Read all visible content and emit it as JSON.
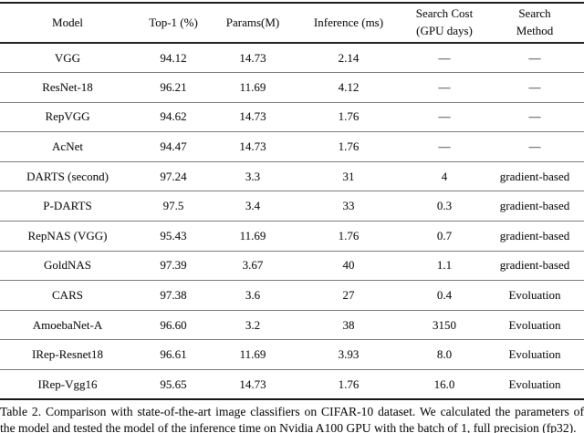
{
  "table": {
    "headers": {
      "model": {
        "line1": "Model"
      },
      "top1": {
        "line1": "Top-1 (%)"
      },
      "params": {
        "line1": "Params(M)"
      },
      "inference": {
        "line1": "Inference (ms)"
      },
      "search_cost": {
        "line1": "Search Cost",
        "line2": "(GPU days)"
      },
      "search_method": {
        "line1": "Search",
        "line2": "Method"
      }
    },
    "rows": [
      {
        "model": "VGG",
        "top1": "94.12",
        "params": "14.73",
        "inference": "2.14",
        "search_cost": "—",
        "search_method": "—"
      },
      {
        "model": "ResNet-18",
        "top1": "96.21",
        "params": "11.69",
        "inference": "4.12",
        "search_cost": "—",
        "search_method": "—"
      },
      {
        "model": "RepVGG",
        "top1": "94.62",
        "params": "14.73",
        "inference": "1.76",
        "search_cost": "—",
        "search_method": "—"
      },
      {
        "model": "AcNet",
        "top1": "94.47",
        "params": "14.73",
        "inference": "1.76",
        "search_cost": "—",
        "search_method": "—"
      },
      {
        "model": "DARTS (second)",
        "top1": "97.24",
        "params": "3.3",
        "inference": "31",
        "search_cost": "4",
        "search_method": "gradient-based"
      },
      {
        "model": "P-DARTS",
        "top1": "97.5",
        "params": "3.4",
        "inference": "33",
        "search_cost": "0.3",
        "search_method": "gradient-based"
      },
      {
        "model": "RepNAS (VGG)",
        "top1": "95.43",
        "params": "11.69",
        "inference": "1.76",
        "search_cost": "0.7",
        "search_method": "gradient-based"
      },
      {
        "model": "GoldNAS",
        "top1": "97.39",
        "params": "3.67",
        "inference": "40",
        "search_cost": "1.1",
        "search_method": "gradient-based"
      },
      {
        "model": "CARS",
        "top1": "97.38",
        "params": "3.6",
        "inference": "27",
        "search_cost": "0.4",
        "search_method": "Evoluation"
      },
      {
        "model": "AmoebaNet-A",
        "top1": "96.60",
        "params": "3.2",
        "inference": "38",
        "search_cost": "3150",
        "search_method": "Evoluation"
      },
      {
        "model": "IRep-Resnet18",
        "top1": "96.61",
        "params": "11.69",
        "inference": "3.93",
        "search_cost": "8.0",
        "search_method": "Evoluation"
      },
      {
        "model": "IRep-Vgg16",
        "top1": "95.65",
        "params": "14.73",
        "inference": "1.76",
        "search_cost": "16.0",
        "search_method": "Evoluation"
      }
    ]
  },
  "caption": {
    "line1": "Table 2. Comparison with state-of-the-art image classifiers on CIFAR-10 dataset. We calculated the parameters of",
    "line2": "the model and tested the model of the inference time on Nvidia A100 GPU with the batch of 1, full precision (fp32)."
  },
  "colors": {
    "text": "#1c1c1c",
    "rule_heavy": "#1f1f1f",
    "rule_light": "#7d7d7d",
    "background": "#ffffff"
  }
}
